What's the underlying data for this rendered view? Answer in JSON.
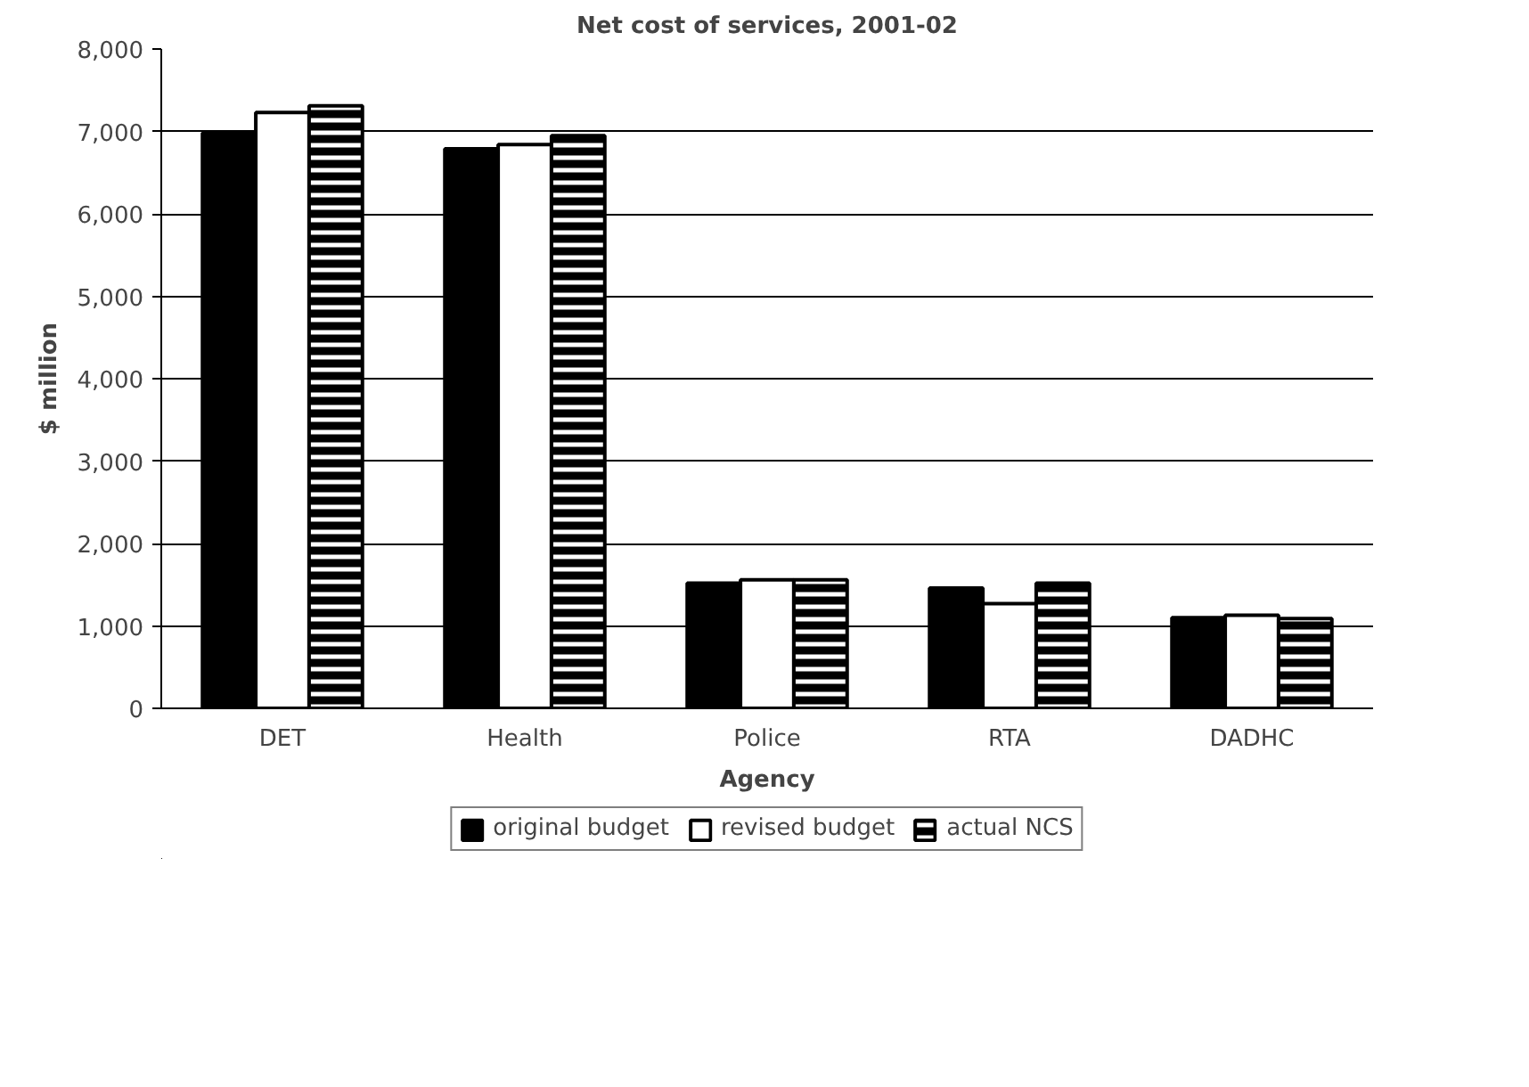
{
  "chart_data": {
    "type": "bar",
    "title": "Net cost of services, 2001-02",
    "xlabel": "Agency",
    "ylabel": "$ million",
    "categories": [
      "DET",
      "Health",
      "Police",
      "RTA",
      "DADHC"
    ],
    "series": [
      {
        "name": "original budget",
        "color": "#000000",
        "values": [
          6980,
          6790,
          1520,
          1460,
          1100
        ]
      },
      {
        "name": "revised budget",
        "color": "#ffffff",
        "values": [
          7230,
          6840,
          1560,
          1270,
          1130
        ]
      },
      {
        "name": "actual NCS",
        "color": "#000000",
        "values": [
          7310,
          6950,
          1560,
          1520,
          1090
        ]
      }
    ],
    "ylim": [
      0,
      8000
    ],
    "yticks": [
      {
        "value": 0,
        "label": "0"
      },
      {
        "value": 1000,
        "label": "1,000"
      },
      {
        "value": 2000,
        "label": "2,000"
      },
      {
        "value": 3000,
        "label": "3,000"
      },
      {
        "value": 4000,
        "label": "4,000"
      },
      {
        "value": 5000,
        "label": "5,000"
      },
      {
        "value": 6000,
        "label": "6,000"
      },
      {
        "value": 7000,
        "label": "7,000"
      },
      {
        "value": 8000,
        "label": "8,000"
      }
    ],
    "grid": "y",
    "legend": "bottom"
  }
}
